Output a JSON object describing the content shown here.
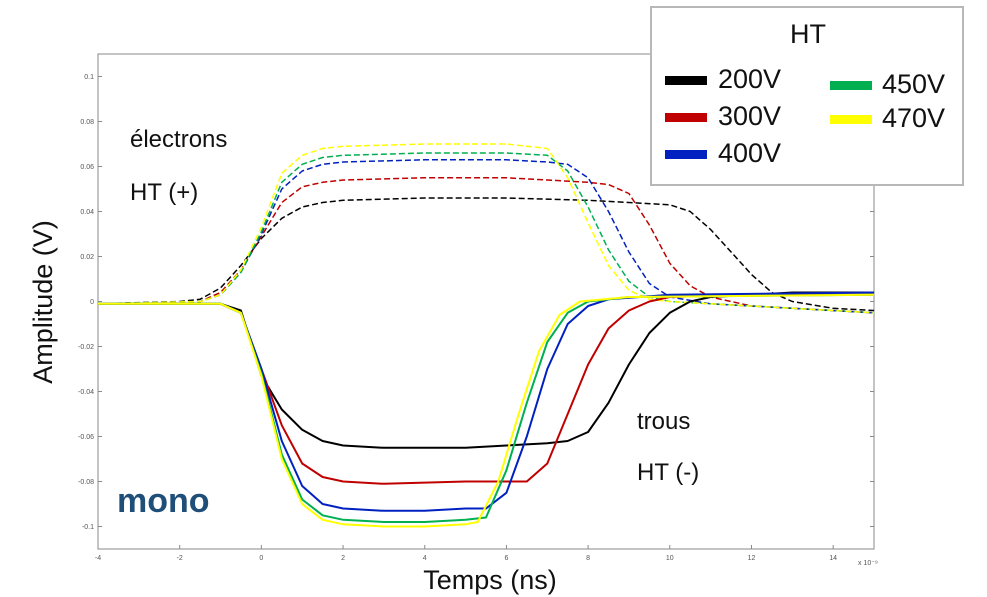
{
  "chart_data": {
    "type": "line",
    "xlabel": "Temps (ns)",
    "ylabel": "Amplitude (V)",
    "x_exponent_label": "x 10⁻⁹",
    "xlim": [
      -4,
      15
    ],
    "ylim": [
      -0.11,
      0.11
    ],
    "x_ticks": [
      -4,
      -2,
      0,
      2,
      4,
      6,
      8,
      10,
      12,
      14
    ],
    "x_tick_labels": [
      "-4",
      "-2",
      "0",
      "2",
      "4",
      "6",
      "8",
      "10",
      "12",
      "14"
    ],
    "y_ticks": [
      0.1,
      0.08,
      0.06,
      0.04,
      0.02,
      0,
      -0.02,
      -0.04,
      -0.06,
      -0.08,
      -0.1
    ],
    "y_tick_labels": [
      "0.1",
      "0.08",
      "0.06",
      "0.04",
      "0.02",
      "0",
      "-0.02",
      "-0.04",
      "-0.06",
      "-0.08",
      "-0.1"
    ],
    "grid": false,
    "legend": {
      "title": "HT",
      "placement": "top-right",
      "entries": [
        {
          "label": "200V",
          "color": "#000000"
        },
        {
          "label": "300V",
          "color": "#c00000"
        },
        {
          "label": "400V",
          "color": "#0020c0"
        },
        {
          "label": "450V",
          "color": "#00b050"
        },
        {
          "label": "470V",
          "color": "#ffff00"
        }
      ]
    },
    "annotations": [
      {
        "text": "électrons",
        "id": "electrons-line1"
      },
      {
        "text": "HT (+)",
        "id": "electrons-line2"
      },
      {
        "text": "trous",
        "id": "trous-line1"
      },
      {
        "text": "HT (-)",
        "id": "trous-line2"
      },
      {
        "text": "mono",
        "id": "mono-label",
        "color": "#1f4e79"
      }
    ],
    "series": [
      {
        "name": "200V",
        "polarity": "électrons",
        "style": "dashed",
        "color": "#000000",
        "points": [
          [
            -4,
            -0.001
          ],
          [
            -2,
            0
          ],
          [
            -1.5,
            0.001
          ],
          [
            -1,
            0.006
          ],
          [
            -0.5,
            0.016
          ],
          [
            0,
            0.028
          ],
          [
            0.5,
            0.037
          ],
          [
            1,
            0.042
          ],
          [
            1.5,
            0.044
          ],
          [
            2,
            0.045
          ],
          [
            4,
            0.046
          ],
          [
            6,
            0.046
          ],
          [
            8,
            0.045
          ],
          [
            9,
            0.044
          ],
          [
            10,
            0.043
          ],
          [
            10.5,
            0.04
          ],
          [
            11,
            0.032
          ],
          [
            11.5,
            0.022
          ],
          [
            12,
            0.012
          ],
          [
            12.5,
            0.004
          ],
          [
            13,
            0.0
          ],
          [
            14,
            -0.003
          ],
          [
            15,
            -0.004
          ]
        ]
      },
      {
        "name": "300V",
        "polarity": "électrons",
        "style": "dashed",
        "color": "#c00000",
        "points": [
          [
            -4,
            -0.001
          ],
          [
            -1.5,
            0
          ],
          [
            -1,
            0.004
          ],
          [
            -0.5,
            0.014
          ],
          [
            0,
            0.029
          ],
          [
            0.5,
            0.044
          ],
          [
            1,
            0.051
          ],
          [
            1.5,
            0.053
          ],
          [
            2,
            0.054
          ],
          [
            4,
            0.055
          ],
          [
            6,
            0.055
          ],
          [
            7,
            0.054
          ],
          [
            8,
            0.053
          ],
          [
            8.5,
            0.052
          ],
          [
            9,
            0.048
          ],
          [
            9.5,
            0.034
          ],
          [
            10,
            0.017
          ],
          [
            10.5,
            0.007
          ],
          [
            11,
            0.002
          ],
          [
            12,
            -0.002
          ],
          [
            15,
            -0.005
          ]
        ]
      },
      {
        "name": "400V",
        "polarity": "électrons",
        "style": "dashed",
        "color": "#0020c0",
        "points": [
          [
            -4,
            -0.001
          ],
          [
            -1.5,
            0
          ],
          [
            -1,
            0.003
          ],
          [
            -0.5,
            0.013
          ],
          [
            0,
            0.03
          ],
          [
            0.5,
            0.05
          ],
          [
            1,
            0.058
          ],
          [
            1.5,
            0.061
          ],
          [
            2,
            0.062
          ],
          [
            4,
            0.063
          ],
          [
            6,
            0.063
          ],
          [
            7,
            0.062
          ],
          [
            7.5,
            0.061
          ],
          [
            8,
            0.055
          ],
          [
            8.5,
            0.04
          ],
          [
            9,
            0.022
          ],
          [
            9.5,
            0.008
          ],
          [
            10,
            0.002
          ],
          [
            11,
            -0.001
          ],
          [
            15,
            -0.005
          ]
        ]
      },
      {
        "name": "450V",
        "polarity": "électrons",
        "style": "dashed",
        "color": "#00b050",
        "points": [
          [
            -4,
            -0.001
          ],
          [
            -1.5,
            0
          ],
          [
            -1,
            0.003
          ],
          [
            -0.5,
            0.013
          ],
          [
            0,
            0.031
          ],
          [
            0.5,
            0.053
          ],
          [
            1,
            0.061
          ],
          [
            1.5,
            0.064
          ],
          [
            2,
            0.065
          ],
          [
            4,
            0.066
          ],
          [
            6,
            0.066
          ],
          [
            7,
            0.065
          ],
          [
            7.5,
            0.058
          ],
          [
            8,
            0.042
          ],
          [
            8.5,
            0.023
          ],
          [
            9,
            0.009
          ],
          [
            9.5,
            0.002
          ],
          [
            10,
            0
          ],
          [
            15,
            -0.005
          ]
        ]
      },
      {
        "name": "470V",
        "polarity": "électrons",
        "style": "dashed",
        "color": "#ffff00",
        "points": [
          [
            -4,
            -0.001
          ],
          [
            -1.5,
            0
          ],
          [
            -1,
            0.003
          ],
          [
            -0.5,
            0.014
          ],
          [
            0,
            0.033
          ],
          [
            0.5,
            0.057
          ],
          [
            1,
            0.065
          ],
          [
            1.5,
            0.068
          ],
          [
            2,
            0.069
          ],
          [
            4,
            0.07
          ],
          [
            6,
            0.07
          ],
          [
            7,
            0.068
          ],
          [
            7.5,
            0.055
          ],
          [
            8,
            0.035
          ],
          [
            8.5,
            0.016
          ],
          [
            9,
            0.005
          ],
          [
            9.5,
            0.001
          ],
          [
            10,
            0
          ],
          [
            15,
            -0.005
          ]
        ]
      },
      {
        "name": "200V",
        "polarity": "trous",
        "style": "solid",
        "color": "#000000",
        "points": [
          [
            -4,
            -0.001
          ],
          [
            -1,
            -0.001
          ],
          [
            -0.5,
            -0.004
          ],
          [
            0,
            -0.033
          ],
          [
            0.5,
            -0.048
          ],
          [
            1,
            -0.057
          ],
          [
            1.5,
            -0.062
          ],
          [
            2,
            -0.064
          ],
          [
            3,
            -0.065
          ],
          [
            5,
            -0.065
          ],
          [
            6,
            -0.064
          ],
          [
            7,
            -0.063
          ],
          [
            7.5,
            -0.062
          ],
          [
            8,
            -0.058
          ],
          [
            8.5,
            -0.045
          ],
          [
            9,
            -0.028
          ],
          [
            9.5,
            -0.014
          ],
          [
            10,
            -0.005
          ],
          [
            10.5,
            0
          ],
          [
            11,
            0.002
          ],
          [
            12,
            0.003
          ],
          [
            13,
            0.004
          ],
          [
            15,
            0.004
          ]
        ]
      },
      {
        "name": "300V",
        "polarity": "trous",
        "style": "solid",
        "color": "#c00000",
        "points": [
          [
            -4,
            -0.001
          ],
          [
            -1,
            -0.001
          ],
          [
            -0.5,
            -0.005
          ],
          [
            0,
            -0.03
          ],
          [
            0.5,
            -0.055
          ],
          [
            1,
            -0.072
          ],
          [
            1.5,
            -0.078
          ],
          [
            2,
            -0.08
          ],
          [
            3,
            -0.081
          ],
          [
            5,
            -0.08
          ],
          [
            6,
            -0.08
          ],
          [
            6.5,
            -0.08
          ],
          [
            7,
            -0.072
          ],
          [
            7.5,
            -0.05
          ],
          [
            8,
            -0.028
          ],
          [
            8.5,
            -0.012
          ],
          [
            9,
            -0.004
          ],
          [
            9.5,
            0
          ],
          [
            10,
            0.002
          ],
          [
            12,
            0.003
          ],
          [
            15,
            0.003
          ]
        ]
      },
      {
        "name": "400V",
        "polarity": "trous",
        "style": "solid",
        "color": "#0020c0",
        "points": [
          [
            -4,
            -0.001
          ],
          [
            -1,
            -0.001
          ],
          [
            -0.5,
            -0.005
          ],
          [
            0,
            -0.03
          ],
          [
            0.5,
            -0.062
          ],
          [
            1,
            -0.082
          ],
          [
            1.5,
            -0.09
          ],
          [
            2,
            -0.092
          ],
          [
            3,
            -0.093
          ],
          [
            4,
            -0.093
          ],
          [
            5,
            -0.092
          ],
          [
            5.5,
            -0.092
          ],
          [
            6,
            -0.085
          ],
          [
            6.5,
            -0.06
          ],
          [
            7,
            -0.03
          ],
          [
            7.5,
            -0.01
          ],
          [
            8,
            -0.002
          ],
          [
            8.5,
            0.001
          ],
          [
            10,
            0.003
          ],
          [
            15,
            0.004
          ]
        ]
      },
      {
        "name": "450V",
        "polarity": "trous",
        "style": "solid",
        "color": "#00b050",
        "points": [
          [
            -4,
            -0.001
          ],
          [
            -1,
            -0.001
          ],
          [
            -0.5,
            -0.005
          ],
          [
            0,
            -0.032
          ],
          [
            0.5,
            -0.068
          ],
          [
            1,
            -0.088
          ],
          [
            1.5,
            -0.095
          ],
          [
            2,
            -0.097
          ],
          [
            3,
            -0.098
          ],
          [
            4,
            -0.098
          ],
          [
            5,
            -0.097
          ],
          [
            5.5,
            -0.096
          ],
          [
            6,
            -0.075
          ],
          [
            6.5,
            -0.045
          ],
          [
            7,
            -0.018
          ],
          [
            7.5,
            -0.005
          ],
          [
            8,
            0
          ],
          [
            9,
            0.002
          ],
          [
            15,
            0.003
          ]
        ]
      },
      {
        "name": "470V",
        "polarity": "trous",
        "style": "solid",
        "color": "#ffff00",
        "points": [
          [
            -4,
            -0.001
          ],
          [
            -1,
            -0.001
          ],
          [
            -0.5,
            -0.005
          ],
          [
            0,
            -0.033
          ],
          [
            0.5,
            -0.07
          ],
          [
            1,
            -0.09
          ],
          [
            1.5,
            -0.097
          ],
          [
            2,
            -0.099
          ],
          [
            3,
            -0.1
          ],
          [
            4,
            -0.1
          ],
          [
            5,
            -0.099
          ],
          [
            5.3,
            -0.098
          ],
          [
            5.8,
            -0.08
          ],
          [
            6.3,
            -0.05
          ],
          [
            6.8,
            -0.022
          ],
          [
            7.3,
            -0.006
          ],
          [
            7.8,
            0
          ],
          [
            9,
            0.002
          ],
          [
            15,
            0.003
          ]
        ]
      }
    ]
  }
}
